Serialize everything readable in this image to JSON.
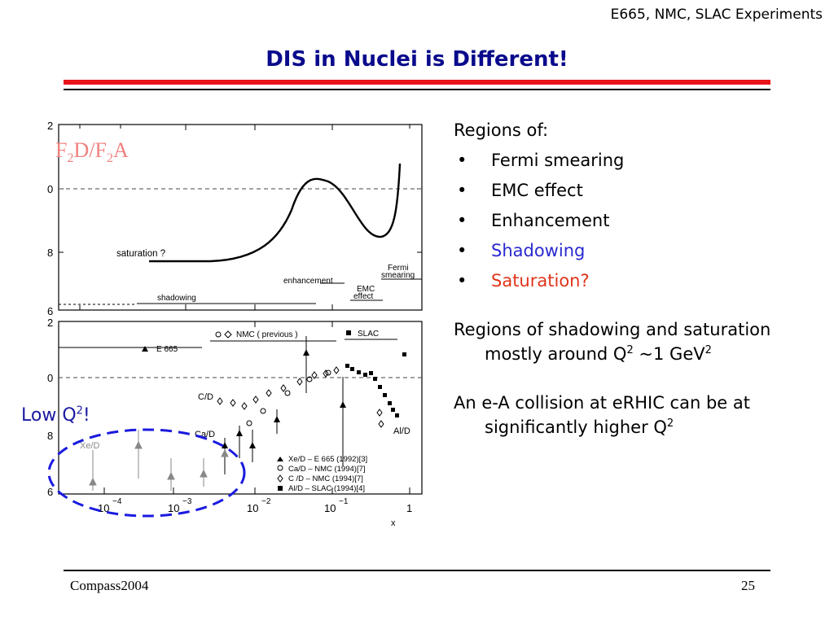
{
  "header_note": "E665, NMC, SLAC Experiments",
  "title": "DIS in Nuclei is Different!",
  "figure": {
    "label_main": "F",
    "label_sub1": "2",
    "label_mid": "D/F",
    "label_sub2": "2",
    "label_end": "A",
    "low_q_label": "Low Q",
    "low_q_sup": "2",
    "low_q_bang": "!",
    "top_panel": {
      "y_ticks": [
        "2",
        "0",
        "8",
        "6"
      ],
      "curve_labels": [
        "saturation ?",
        "enhancement",
        "EMC",
        "effect",
        "Fermi",
        "smearing",
        "shadowing"
      ]
    },
    "bottom_panel": {
      "y_ticks": [
        "2",
        "0",
        "8",
        "6"
      ],
      "x_ticks": [
        "10",
        "10",
        "10",
        "10",
        "1"
      ],
      "x_tick_exps": [
        "−4",
        "−3",
        "−2",
        "−1",
        ""
      ],
      "x_axis_label": "x",
      "nuclei_labels": [
        "C/D",
        "Ca/D",
        "Xe/D",
        "Al/D"
      ],
      "legend_top": [
        "E 665",
        "NMC   ( previous )",
        "SLAC"
      ],
      "legend_bottom": [
        "Xe/D – E 665 (1992)[3]",
        "Ca/D – NMC  (1994)[7]",
        "C /D – NMC  (1994)[7]",
        "Al/D  – SLAC (1994)[4]"
      ]
    }
  },
  "regions": {
    "heading": "Regions of:",
    "items": [
      {
        "text": "Fermi smearing",
        "color": "#000000"
      },
      {
        "text": "EMC effect",
        "color": "#000000"
      },
      {
        "text": "Enhancement",
        "color": "#000000"
      },
      {
        "text": "Shadowing",
        "color": "#2a2ad0"
      },
      {
        "text": "Saturation?",
        "color": "#e0341a"
      }
    ],
    "bullet": "•"
  },
  "paragraph1": {
    "text": "Regions of shadowing and saturation mostly around Q",
    "sup1": "2",
    "text2": " ~1 GeV",
    "sup2": "2"
  },
  "paragraph2": {
    "text": "An e-A collision at eRHIC can be at significantly higher Q",
    "sup": "2"
  },
  "footer": {
    "left": "Compass2004",
    "page": "25"
  },
  "colors": {
    "title": "#0a0a8c",
    "accent_red": "#e8141a",
    "circle_blue": "#1a1ae0"
  }
}
